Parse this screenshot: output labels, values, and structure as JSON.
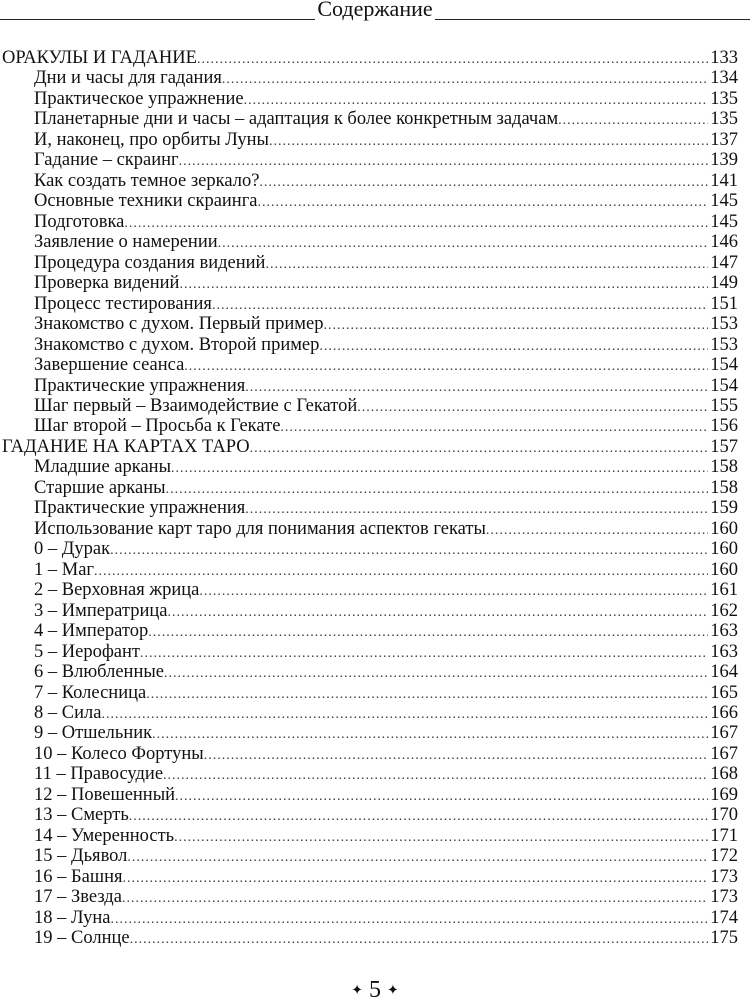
{
  "header": {
    "title": "Содержание"
  },
  "toc": [
    {
      "label": "ОРАКУЛЫ И ГАДАНИЕ",
      "page": "133",
      "level": 0
    },
    {
      "label": "Дни и часы для гадания",
      "page": "134",
      "level": 1
    },
    {
      "label": "Практическое упражнение",
      "page": "135",
      "level": 1
    },
    {
      "label": "Планетарные дни и часы – адаптация к более конкретным задачам",
      "page": "135",
      "level": 1
    },
    {
      "label": "И, наконец, про орбиты Луны",
      "page": "137",
      "level": 1
    },
    {
      "label": "Гадание – скраинг",
      "page": "139",
      "level": 1
    },
    {
      "label": "Как создать темное зеркало?",
      "page": "141",
      "level": 1
    },
    {
      "label": "Основные техники скраинга",
      "page": "145",
      "level": 1
    },
    {
      "label": "Подготовка",
      "page": "145",
      "level": 1
    },
    {
      "label": "Заявление о намерении",
      "page": "146",
      "level": 1
    },
    {
      "label": "Процедура создания видений",
      "page": "147",
      "level": 1
    },
    {
      "label": "Проверка видений",
      "page": "149",
      "level": 1
    },
    {
      "label": "Процесс тестирования",
      "page": "151",
      "level": 1
    },
    {
      "label": "Знакомство с духом. Первый пример",
      "page": "153",
      "level": 1
    },
    {
      "label": "Знакомство с духом. Второй пример",
      "page": "153",
      "level": 1
    },
    {
      "label": "Завершение сеанса",
      "page": "154",
      "level": 1
    },
    {
      "label": "Практические упражнения",
      "page": "154",
      "level": 1
    },
    {
      "label": "Шаг первый – Взаимодействие с Гекатой",
      "page": "155",
      "level": 1
    },
    {
      "label": "Шаг второй – Просьба к Гекате",
      "page": "156",
      "level": 1
    },
    {
      "label": "ГАДАНИЕ НА КАРТАХ ТАРО",
      "page": "157",
      "level": 0
    },
    {
      "label": "Младшие арканы",
      "page": "158",
      "level": 1
    },
    {
      "label": "Старшие арканы",
      "page": "158",
      "level": 1
    },
    {
      "label": "Практические упражнения",
      "page": "159",
      "level": 1
    },
    {
      "label": "Использование карт таро для понимания аспектов гекаты",
      "page": "160",
      "level": 1
    },
    {
      "label": "0 – Дурак",
      "page": "160",
      "level": 1
    },
    {
      "label": "1 – Маг",
      "page": "160",
      "level": 1
    },
    {
      "label": "2 – Верховная жрица",
      "page": "161",
      "level": 1
    },
    {
      "label": "3 – Императрица",
      "page": "162",
      "level": 1
    },
    {
      "label": "4 – Император",
      "page": "163",
      "level": 1
    },
    {
      "label": "5 – Иерофант",
      "page": "163",
      "level": 1
    },
    {
      "label": "6 – Влюбленные",
      "page": "164",
      "level": 1
    },
    {
      "label": "7 – Колесница",
      "page": "165",
      "level": 1
    },
    {
      "label": "8 – Сила",
      "page": "166",
      "level": 1
    },
    {
      "label": "9 – Отшельник",
      "page": "167",
      "level": 1
    },
    {
      "label": "10 – Колесо Фортуны",
      "page": "167",
      "level": 1
    },
    {
      "label": "11 – Правосудие",
      "page": "168",
      "level": 1
    },
    {
      "label": "12 – Повешенный",
      "page": "169",
      "level": 1
    },
    {
      "label": "13 – Смерть",
      "page": "170",
      "level": 1
    },
    {
      "label": "14 – Умеренность",
      "page": "171",
      "level": 1
    },
    {
      "label": "15 – Дьявол",
      "page": "172",
      "level": 1
    },
    {
      "label": "16 – Башня",
      "page": "173",
      "level": 1
    },
    {
      "label": "17 – Звезда",
      "page": "173",
      "level": 1
    },
    {
      "label": "18 – Луна",
      "page": "174",
      "level": 1
    },
    {
      "label": "19 – Солнце",
      "page": "175",
      "level": 1
    }
  ],
  "footer": {
    "page_number": "5"
  }
}
